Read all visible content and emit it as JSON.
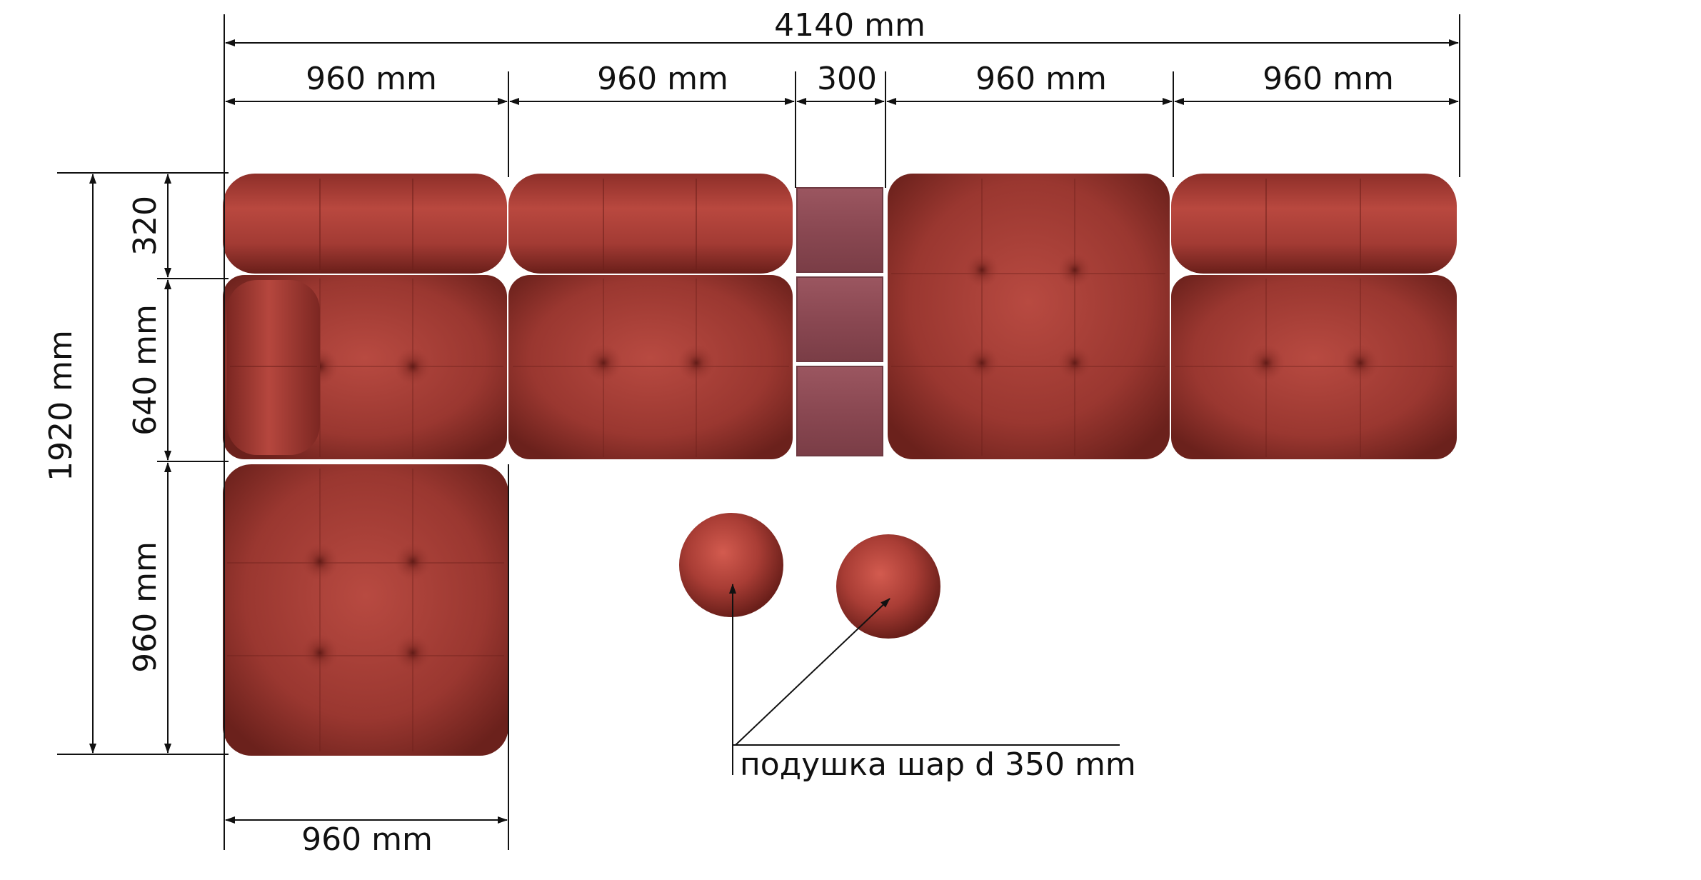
{
  "colors": {
    "cushion_base": "#9e3a33",
    "cushion_light": "#c8574d",
    "cushion_dark": "#6a211d",
    "block": "#8c4a52",
    "block_light": "#a35c64",
    "line": "#111111",
    "background": "#ffffff"
  },
  "dimensions": {
    "total_width": "4140 mm",
    "seg1": "960 mm",
    "seg2": "960 mm",
    "seg3": "300",
    "seg4": "960 mm",
    "seg5": "960 mm",
    "total_height": "1920 mm",
    "back_depth": "320",
    "seat_depth": "640 mm",
    "ottoman_depth": "960 mm",
    "ottoman_width": "960 mm"
  },
  "callout": {
    "label": "подушка шар d 350 mm"
  },
  "icons": {
    "seat_cushion": "tufted-cushion-icon",
    "back_cushion": "roll-cushion-icon",
    "ball_cushion": "ball-cushion-icon",
    "spacer_block": "block-icon"
  }
}
